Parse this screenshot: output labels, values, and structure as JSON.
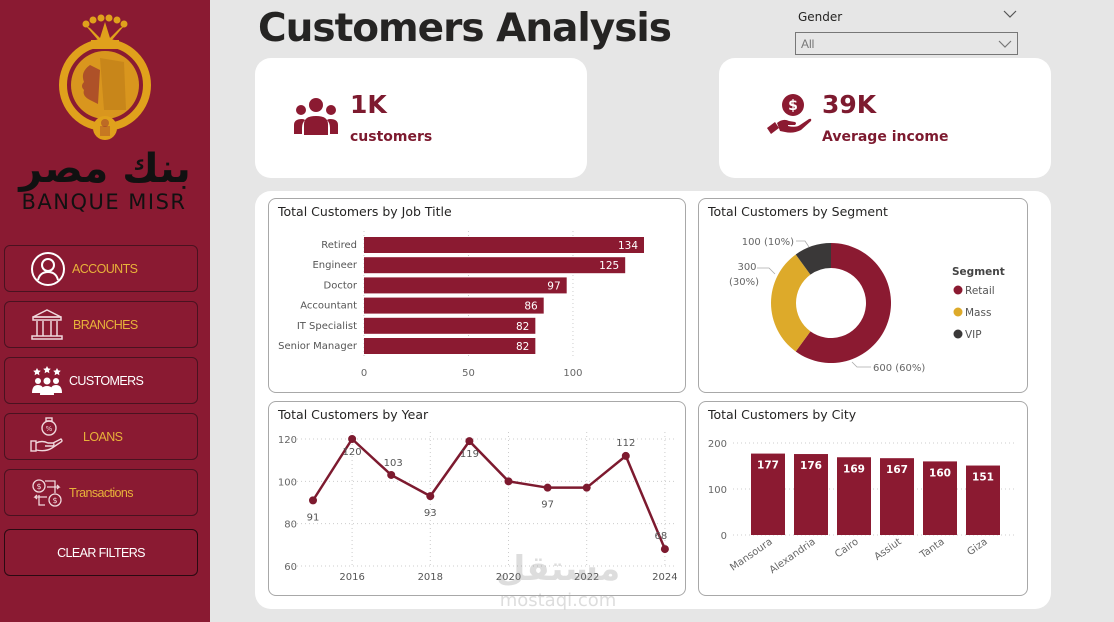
{
  "brand": {
    "name_ar": "بنك مصر",
    "name_en": "BANQUE MISR"
  },
  "sidebar": {
    "items": [
      {
        "label": "ACCOUNTS",
        "icon": "user-circle-icon",
        "active": false
      },
      {
        "label": "BRANCHES",
        "icon": "bank-building-icon",
        "active": false
      },
      {
        "label": "CUSTOMERS",
        "icon": "customers-group-icon",
        "active": true
      },
      {
        "label": "LOANS",
        "icon": "loan-hand-icon",
        "active": false
      },
      {
        "label": "Transactions",
        "icon": "transactions-icon",
        "active": false
      }
    ],
    "clear_filters_label": "CLEAR FILTERS"
  },
  "header": {
    "title": "Customers Analysis"
  },
  "slicer": {
    "label": "Gender",
    "selected": "All"
  },
  "kpis": [
    {
      "value": "1K",
      "label": "customers",
      "icon": "people-icon"
    },
    {
      "value": "39K",
      "label": "Average income",
      "icon": "money-hand-icon"
    }
  ],
  "colors": {
    "brand": "#8a1a32",
    "accent": "#e8b23a",
    "retail": "#8b1a31",
    "mass": "#ddaa2a",
    "vip": "#3a3838"
  },
  "watermark": {
    "ar": "مستقل",
    "en": "mostaqi.com"
  },
  "chart_data": [
    {
      "id": "job",
      "type": "bar",
      "orientation": "horizontal",
      "title": "Total Customers by Job Title",
      "categories": [
        "Retired",
        "Engineer",
        "Doctor",
        "Accountant",
        "IT Specialist",
        "Senior Manager"
      ],
      "values": [
        134,
        125,
        97,
        86,
        82,
        82
      ],
      "xlim": [
        0,
        140
      ],
      "xticks": [
        "0",
        "50",
        "100"
      ],
      "xtick_values": [
        0,
        50,
        100
      ],
      "grid": true
    },
    {
      "id": "segment",
      "type": "pie",
      "donut": true,
      "title": "Total Customers by Segment",
      "legend_title": "Segment",
      "legend_position": "right",
      "slices": [
        {
          "name": "Retail",
          "value": 600,
          "label": "600 (60%)"
        },
        {
          "name": "Mass",
          "value": 300,
          "label": "300 (30%)"
        },
        {
          "name": "VIP",
          "value": 100,
          "label": "100 (10%)"
        }
      ]
    },
    {
      "id": "year",
      "type": "line",
      "title": "Total Customers by Year",
      "x": [
        2015,
        2016,
        2017,
        2018,
        2019,
        2020,
        2021,
        2022,
        2023,
        2024
      ],
      "values": [
        91,
        120,
        103,
        93,
        119,
        100,
        97,
        97,
        112,
        68
      ],
      "data_labels": [
        "91",
        "120",
        "103",
        "93",
        "119",
        "",
        "97",
        "",
        "112",
        "68"
      ],
      "xticks": [
        "2016",
        "2018",
        "2020",
        "2022",
        "2024"
      ],
      "xtick_values": [
        2016,
        2018,
        2020,
        2022,
        2024
      ],
      "yticks": [
        "60",
        "80",
        "100",
        "120"
      ],
      "ytick_values": [
        60,
        80,
        100,
        120
      ],
      "ylim": [
        60,
        120
      ],
      "grid": true
    },
    {
      "id": "city",
      "type": "bar",
      "orientation": "vertical",
      "title": "Total Customers by City",
      "categories": [
        "Mansoura",
        "Alexandria",
        "Cairo",
        "Assiut",
        "Tanta",
        "Giza"
      ],
      "values": [
        177,
        176,
        169,
        167,
        160,
        151
      ],
      "yticks": [
        "0",
        "100",
        "200"
      ],
      "ytick_values": [
        0,
        100,
        200
      ],
      "ylim": [
        0,
        200
      ],
      "grid": true
    }
  ]
}
